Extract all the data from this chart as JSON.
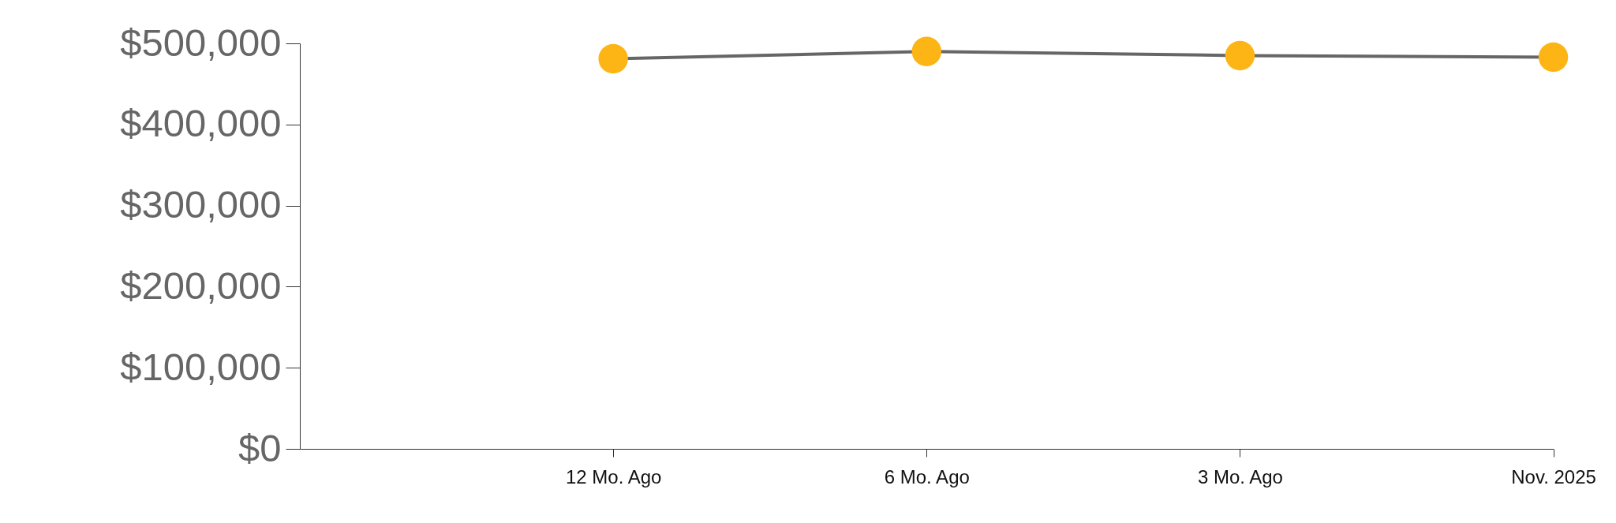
{
  "chart_data": {
    "type": "line",
    "categories": [
      null,
      "12 Mo. Ago",
      "6 Mo. Ago",
      "3 Mo. Ago",
      "Nov. 2025"
    ],
    "series": [
      {
        "color": "#666666",
        "values": [
          null,
          481000,
          490000,
          485000,
          483000
        ]
      }
    ],
    "marker": "circle",
    "ylim": [
      0,
      500000
    ],
    "yticks": [
      {
        "value": 0,
        "label": "$0"
      },
      {
        "value": 100000,
        "label": "$100,000"
      },
      {
        "value": 200000,
        "label": "$200,000"
      },
      {
        "value": 300000,
        "label": "$300,000"
      },
      {
        "value": 400000,
        "label": "$400,000"
      },
      {
        "value": 500000,
        "label": "$500,000"
      }
    ],
    "line_style": "solid"
  }
}
